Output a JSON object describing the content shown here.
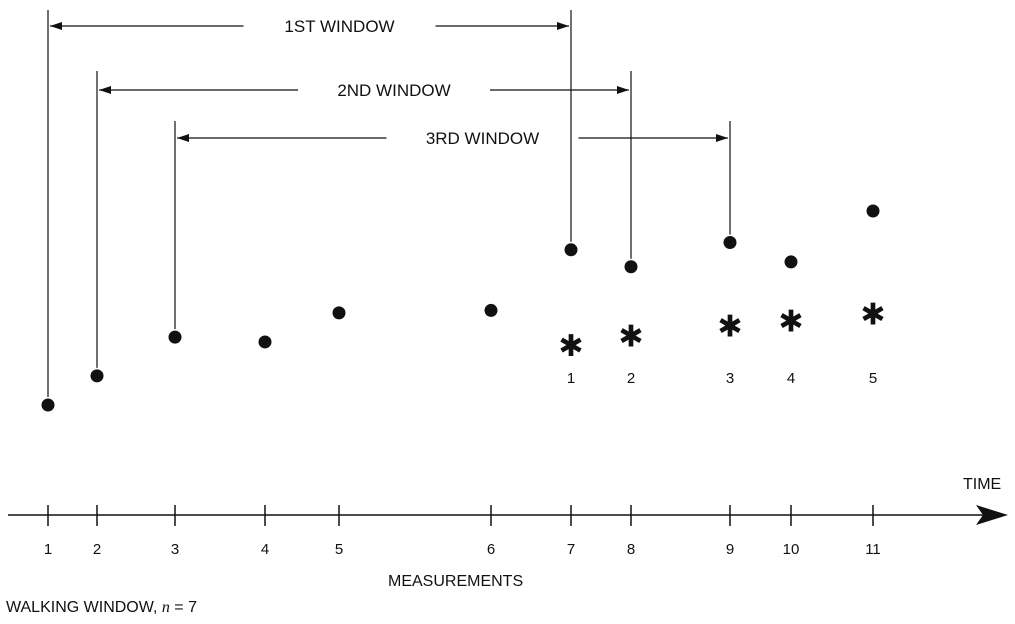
{
  "title": "",
  "windows": [
    {
      "label": "1ST WINDOW",
      "start_measurement": 1,
      "end_measurement": 7
    },
    {
      "label": "2ND WINDOW",
      "start_measurement": 2,
      "end_measurement": 8
    },
    {
      "label": "3RD WINDOW",
      "start_measurement": 3,
      "end_measurement": 9
    }
  ],
  "measurements": [
    {
      "label": "1",
      "value": 1.0
    },
    {
      "label": "2",
      "value": 1.6
    },
    {
      "label": "3",
      "value": 2.4
    },
    {
      "label": "4",
      "value": 2.3
    },
    {
      "label": "5",
      "value": 2.9
    },
    {
      "label": "6",
      "value": 2.95
    },
    {
      "label": "7",
      "value": 4.2
    },
    {
      "label": "8",
      "value": 3.85
    },
    {
      "label": "9",
      "value": 4.35
    },
    {
      "label": "10",
      "value": 3.95
    },
    {
      "label": "11",
      "value": 5.0
    }
  ],
  "window_results": [
    {
      "label": "1",
      "at_measurement": 7,
      "value": 2.3
    },
    {
      "label": "2",
      "at_measurement": 8,
      "value": 2.5
    },
    {
      "label": "3",
      "at_measurement": 9,
      "value": 2.7
    },
    {
      "label": "4",
      "at_measurement": 10,
      "value": 2.8
    },
    {
      "label": "5",
      "at_measurement": 11,
      "value": 2.95
    }
  ],
  "axis": {
    "time_label": "TIME",
    "measurements_label": "MEASUREMENTS"
  },
  "caption": {
    "prefix": "WALKING WINDOW, ",
    "variable": "n",
    "suffix": " = 7"
  },
  "colors": {
    "ink": "#111111",
    "background": "#ffffff"
  },
  "marker_glyph": "✱"
}
